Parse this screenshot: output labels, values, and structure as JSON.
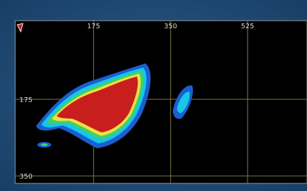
{
  "chart_data": {
    "type": "heatmap",
    "xlim": [
      0,
      660
    ],
    "ylim": [
      0,
      364
    ],
    "xticks": [
      175,
      350,
      525
    ],
    "yticks": [
      175,
      350
    ],
    "grid": true,
    "grid_color": "#7d7d45"
  }
}
